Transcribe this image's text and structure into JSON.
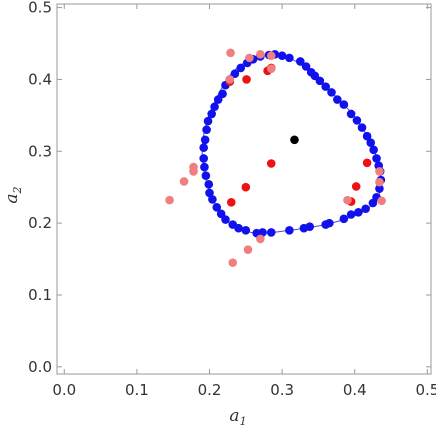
{
  "chart_data": {
    "type": "scatter",
    "title": "",
    "xlabel": "a",
    "xlabel_subscript": "1",
    "ylabel": "a",
    "ylabel_subscript": "2",
    "xlim": [
      -0.01,
      0.505
    ],
    "ylim": [
      -0.01,
      0.505
    ],
    "xticks": [
      "0.0",
      "0.1",
      "0.2",
      "0.3",
      "0.4",
      "0.5"
    ],
    "yticks": [
      "0.0",
      "0.1",
      "0.2",
      "0.3",
      "0.4",
      "0.5"
    ],
    "xtick_values": [
      0.0,
      0.1,
      0.2,
      0.3,
      0.4,
      0.5
    ],
    "ytick_values": [
      0.0,
      0.1,
      0.2,
      0.3,
      0.4,
      0.5
    ],
    "grid": false,
    "frame_color": "#9a9a9a",
    "curve": {
      "color": "#4b4bcc",
      "points": [
        [
          0.265,
          0.186
        ],
        [
          0.295,
          0.188
        ],
        [
          0.325,
          0.192
        ],
        [
          0.355,
          0.197
        ],
        [
          0.385,
          0.205
        ],
        [
          0.41,
          0.215
        ],
        [
          0.43,
          0.232
        ],
        [
          0.436,
          0.255
        ],
        [
          0.433,
          0.28
        ],
        [
          0.425,
          0.305
        ],
        [
          0.415,
          0.325
        ],
        [
          0.4,
          0.348
        ],
        [
          0.385,
          0.365
        ],
        [
          0.36,
          0.39
        ],
        [
          0.34,
          0.41
        ],
        [
          0.31,
          0.43
        ],
        [
          0.285,
          0.435
        ],
        [
          0.255,
          0.427
        ],
        [
          0.23,
          0.408
        ],
        [
          0.21,
          0.375
        ],
        [
          0.196,
          0.34
        ],
        [
          0.19,
          0.305
        ],
        [
          0.193,
          0.27
        ],
        [
          0.202,
          0.24
        ],
        [
          0.218,
          0.21
        ],
        [
          0.24,
          0.193
        ],
        [
          0.265,
          0.186
        ]
      ]
    },
    "series": [
      {
        "color": "#1111ee",
        "values": [
          [
            0.265,
            0.186
          ],
          [
            0.285,
            0.187
          ],
          [
            0.31,
            0.19
          ],
          [
            0.33,
            0.193
          ],
          [
            0.338,
            0.195
          ],
          [
            0.36,
            0.198
          ],
          [
            0.365,
            0.2
          ],
          [
            0.385,
            0.206
          ],
          [
            0.395,
            0.212
          ],
          [
            0.405,
            0.215
          ],
          [
            0.415,
            0.22
          ],
          [
            0.425,
            0.228
          ],
          [
            0.43,
            0.236
          ],
          [
            0.434,
            0.248
          ],
          [
            0.436,
            0.26
          ],
          [
            0.435,
            0.272
          ],
          [
            0.433,
            0.28
          ],
          [
            0.43,
            0.29
          ],
          [
            0.426,
            0.302
          ],
          [
            0.422,
            0.312
          ],
          [
            0.417,
            0.321
          ],
          [
            0.41,
            0.333
          ],
          [
            0.403,
            0.343
          ],
          [
            0.395,
            0.352
          ],
          [
            0.385,
            0.365
          ],
          [
            0.376,
            0.372
          ],
          [
            0.368,
            0.382
          ],
          [
            0.36,
            0.39
          ],
          [
            0.352,
            0.398
          ],
          [
            0.345,
            0.405
          ],
          [
            0.34,
            0.41
          ],
          [
            0.333,
            0.418
          ],
          [
            0.325,
            0.425
          ],
          [
            0.31,
            0.43
          ],
          [
            0.3,
            0.433
          ],
          [
            0.29,
            0.435
          ],
          [
            0.282,
            0.434
          ],
          [
            0.27,
            0.432
          ],
          [
            0.26,
            0.428
          ],
          [
            0.252,
            0.423
          ],
          [
            0.243,
            0.416
          ],
          [
            0.235,
            0.408
          ],
          [
            0.228,
            0.4
          ],
          [
            0.222,
            0.392
          ],
          [
            0.218,
            0.38
          ],
          [
            0.212,
            0.372
          ],
          [
            0.207,
            0.362
          ],
          [
            0.203,
            0.352
          ],
          [
            0.198,
            0.342
          ],
          [
            0.196,
            0.33
          ],
          [
            0.194,
            0.316
          ],
          [
            0.192,
            0.305
          ],
          [
            0.192,
            0.29
          ],
          [
            0.193,
            0.278
          ],
          [
            0.195,
            0.266
          ],
          [
            0.199,
            0.254
          ],
          [
            0.2,
            0.242
          ],
          [
            0.204,
            0.233
          ],
          [
            0.21,
            0.222
          ],
          [
            0.216,
            0.213
          ],
          [
            0.222,
            0.205
          ],
          [
            0.232,
            0.198
          ],
          [
            0.24,
            0.193
          ],
          [
            0.25,
            0.19
          ],
          [
            0.273,
            0.187
          ]
        ]
      },
      {
        "color": "#ee1111",
        "values": [
          [
            0.228,
            0.397
          ],
          [
            0.251,
            0.4
          ],
          [
            0.285,
            0.416
          ],
          [
            0.28,
            0.412
          ],
          [
            0.23,
            0.229
          ],
          [
            0.25,
            0.25
          ],
          [
            0.285,
            0.283
          ],
          [
            0.395,
            0.23
          ],
          [
            0.402,
            0.251
          ],
          [
            0.417,
            0.284
          ]
        ]
      },
      {
        "color": "#f07f7f",
        "values": [
          [
            0.229,
            0.437
          ],
          [
            0.255,
            0.43
          ],
          [
            0.27,
            0.435
          ],
          [
            0.285,
            0.433
          ],
          [
            0.228,
            0.4
          ],
          [
            0.145,
            0.232
          ],
          [
            0.165,
            0.258
          ],
          [
            0.178,
            0.278
          ],
          [
            0.178,
            0.272
          ],
          [
            0.232,
            0.145
          ],
          [
            0.253,
            0.163
          ],
          [
            0.27,
            0.178
          ],
          [
            0.285,
            0.415
          ],
          [
            0.39,
            0.232
          ],
          [
            0.434,
            0.272
          ],
          [
            0.434,
            0.257
          ],
          [
            0.437,
            0.231
          ]
        ]
      },
      {
        "color": "#000000",
        "values": [
          [
            0.317,
            0.316
          ]
        ]
      }
    ]
  }
}
